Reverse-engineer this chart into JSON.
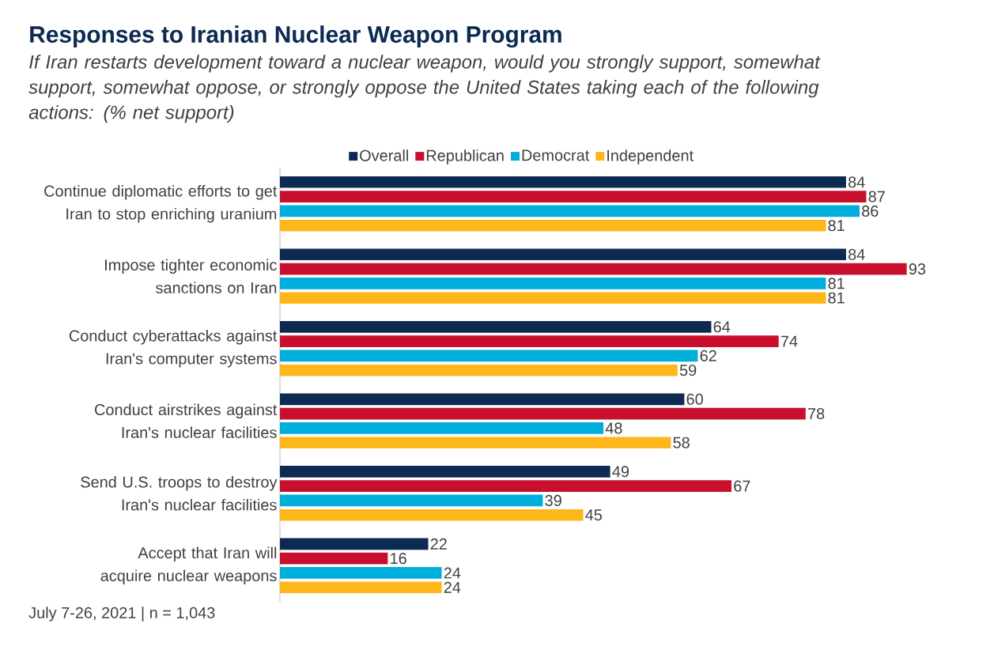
{
  "chart_data": {
    "type": "bar",
    "orientation": "horizontal",
    "title": "Responses to Iranian Nuclear Weapon Program",
    "subtitle": "If Iran restarts development toward a nuclear weapon, would you strongly support, somewhat support, somewhat oppose, or strongly oppose the United States taking each of the following actions: (% net support)",
    "categories": [
      "Continue diplomatic efforts to get Iran to stop enriching uranium",
      "Impose tighter economic sanctions on Iran",
      "Conduct cyberattacks against Iran's computer systems",
      "Conduct airstrikes against Iran's nuclear facilities",
      "Send U.S. troops to destroy Iran's nuclear facilities",
      "Accept that Iran will acquire nuclear weapons"
    ],
    "series": [
      {
        "name": "Overall",
        "color": "#0c2a52",
        "values": [
          84,
          84,
          64,
          60,
          49,
          22
        ]
      },
      {
        "name": "Republican",
        "color": "#c8102e",
        "values": [
          87,
          93,
          74,
          78,
          67,
          16
        ]
      },
      {
        "name": "Democrat",
        "color": "#00aedb",
        "values": [
          86,
          81,
          62,
          48,
          39,
          24
        ]
      },
      {
        "name": "Independent",
        "color": "#fdb71a",
        "values": [
          81,
          81,
          59,
          58,
          45,
          24
        ]
      }
    ],
    "data_labels": true,
    "legend": "top",
    "annotations": [
      "July 7-26, 2021 | n = 1,043"
    ]
  }
}
